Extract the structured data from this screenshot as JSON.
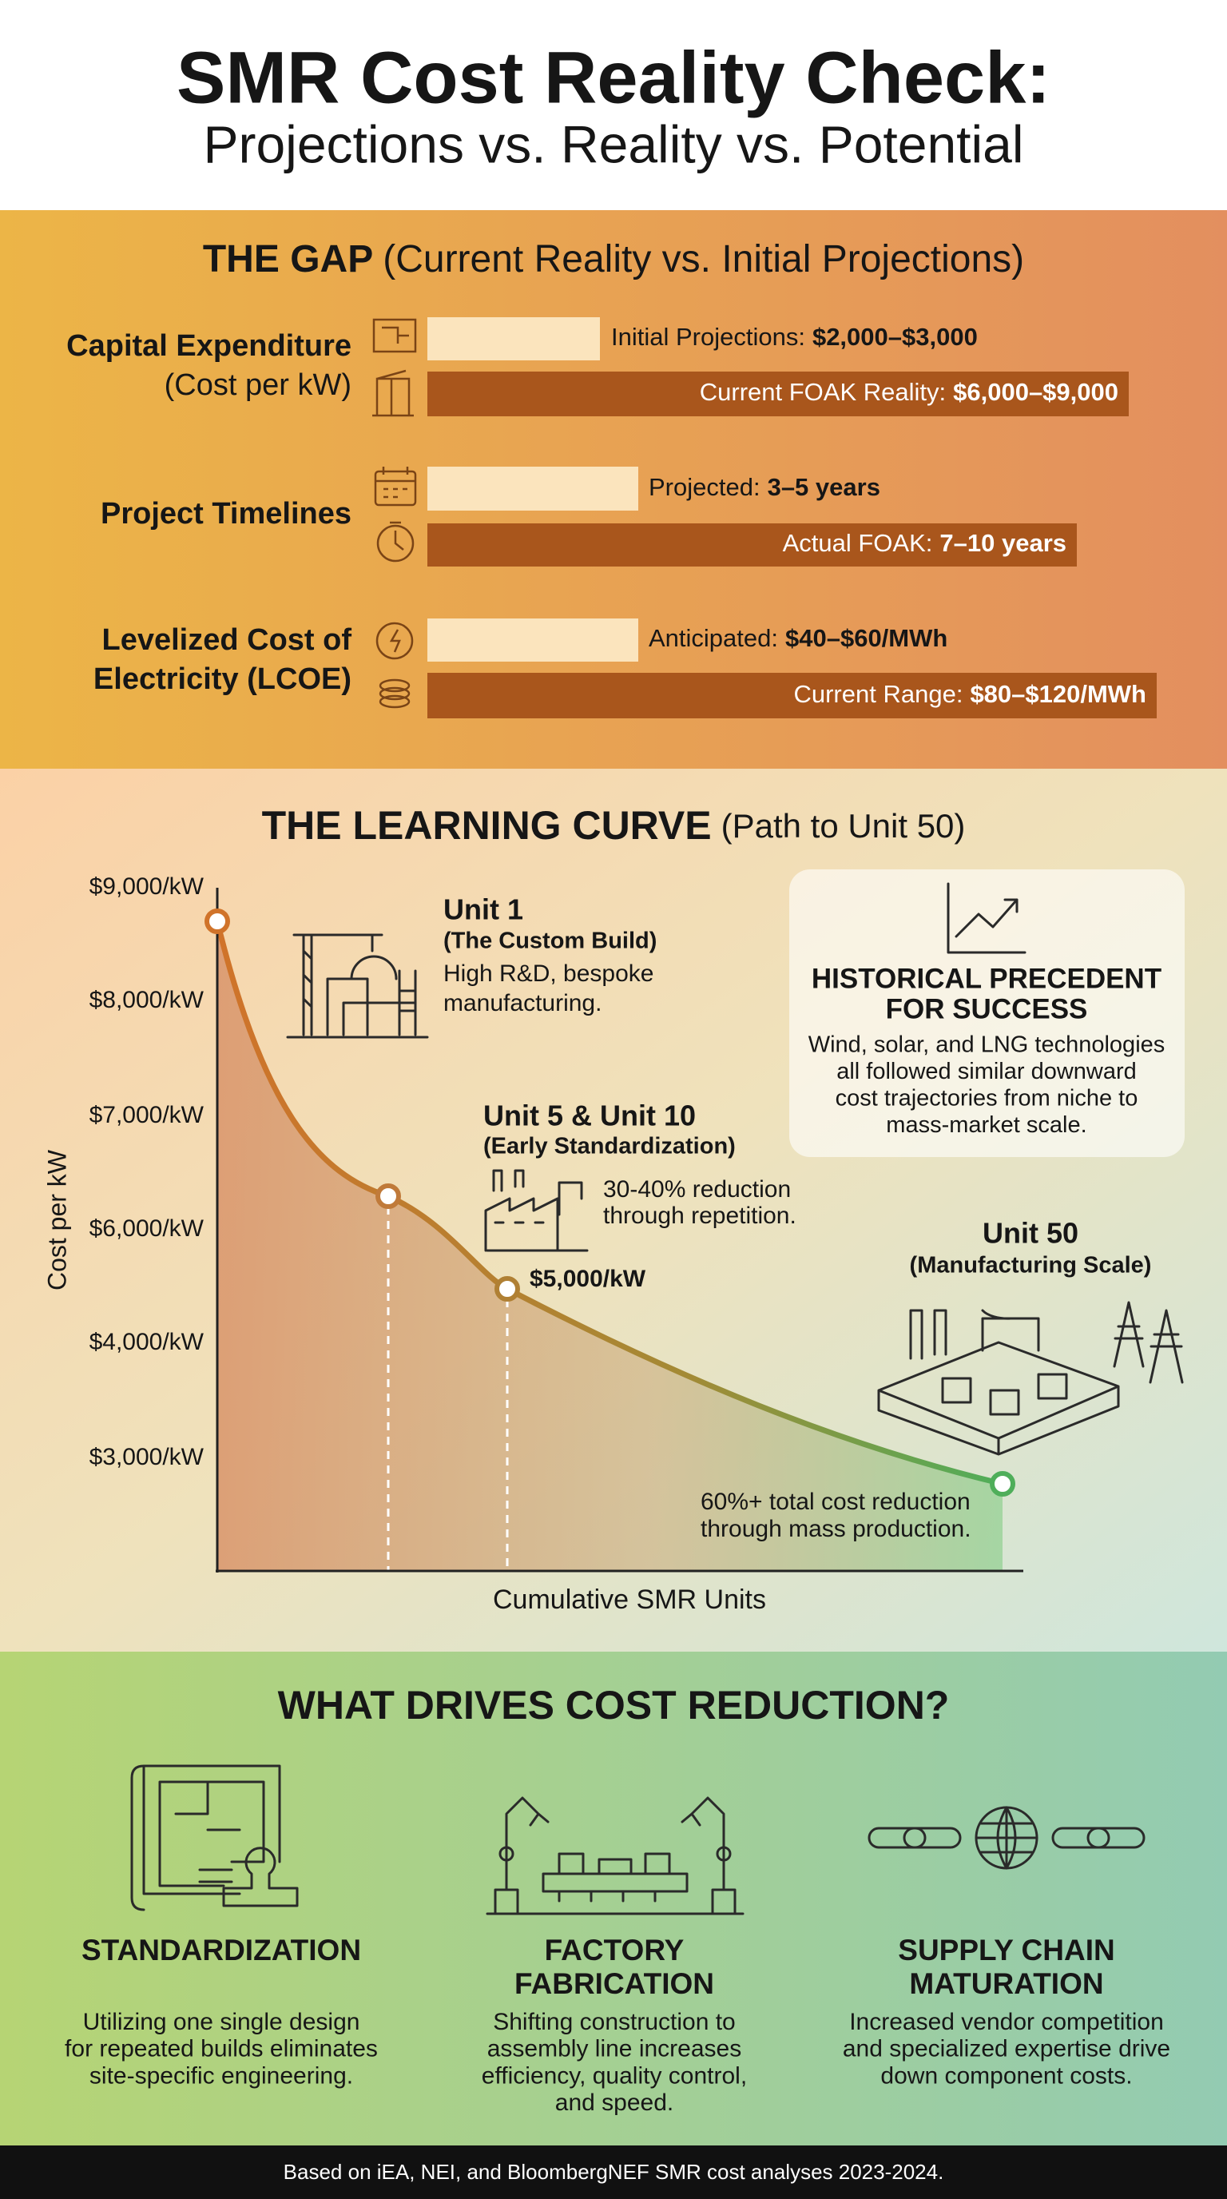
{
  "header": {
    "title": "SMR Cost Reality Check:",
    "subtitle": "Projections vs. Reality vs. Potential"
  },
  "gap": {
    "heading": "THE GAP",
    "heading_note": "(Current Reality vs. Initial Projections)",
    "rows": [
      {
        "label_lines": [
          "Capital Expenditure",
          "(Cost per kW)"
        ],
        "projected_label": "Initial Projections:",
        "projected_value": "$2,000–$3,000",
        "actual_label": "Current FOAK Reality:",
        "actual_value": "$6,000–$9,000"
      },
      {
        "label_lines": [
          "Project Timelines"
        ],
        "projected_label": "Projected:",
        "projected_value": "3–5 years",
        "actual_label": "Actual FOAK:",
        "actual_value": "7–10 years"
      },
      {
        "label_lines": [
          "Levelized Cost of",
          "Electricity (LCOE)"
        ],
        "projected_label": "Anticipated:",
        "projected_value": "$40–$60/MWh",
        "actual_label": "Current Range:",
        "actual_value": "$80–$120/MWh"
      }
    ]
  },
  "learning_curve": {
    "heading": "THE LEARNING CURVE",
    "heading_note": "(Path to Unit 50)",
    "y_axis_label": "Cost per kW",
    "x_axis_label": "Cumulative SMR Units",
    "y_tick_labels": [
      "$9,000/kW",
      "$8,000/kW",
      "$7,000/kW",
      "$6,000/kW",
      "$4,000/kW",
      "$3,000/kW"
    ],
    "annotations": [
      {
        "title": "Unit 1",
        "subtitle": "(The Custom Build)",
        "text_lines": [
          "High R&D, bespoke",
          "manufacturing."
        ]
      },
      {
        "title": "Unit 5 & Unit 10",
        "subtitle": "(Early Standardization)",
        "text_lines": [
          "30-40% reduction",
          "through repetition."
        ]
      },
      {
        "title": "Unit 50",
        "subtitle": "(Manufacturing Scale)",
        "text_lines": [
          "60%+ total cost reduction",
          "through mass production."
        ]
      }
    ],
    "point_label": "$5,000/kW",
    "precedent": {
      "title_lines": [
        "HISTORICAL PRECEDENT",
        "FOR SUCCESS"
      ],
      "text_lines": [
        "Wind, solar, and LNG technologies",
        "all followed similar downward",
        "cost trajectories from niche to",
        "mass-market scale."
      ]
    }
  },
  "drivers": {
    "heading": "WHAT DRIVES COST REDUCTION?",
    "items": [
      {
        "title_lines": [
          "STANDARDIZATION"
        ],
        "text_lines": [
          "Utilizing one single design",
          "for repeated builds eliminates",
          "site-specific engineering."
        ]
      },
      {
        "title_lines": [
          "FACTORY",
          "FABRICATION"
        ],
        "text_lines": [
          "Shifting construction to",
          "assembly line increases",
          "efficiency, quality control,",
          "and speed."
        ]
      },
      {
        "title_lines": [
          "SUPPLY CHAIN",
          "MATURATION"
        ],
        "text_lines": [
          "Increased vendor competition",
          "and specialized expertise drive",
          "down component costs."
        ]
      }
    ]
  },
  "footer": "Based on iEA, NEI, and BloombergNEF SMR cost analyses 2023-2024."
}
